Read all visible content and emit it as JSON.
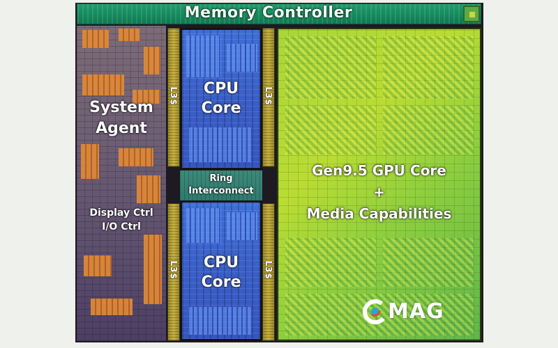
{
  "blocks": {
    "memory_controller": "Memory Controller",
    "system_agent": [
      "System",
      "Agent"
    ],
    "display_io": [
      "Display Ctrl",
      "I/O Ctrl"
    ],
    "l3_cache": "L3$",
    "cpu_core": [
      "CPU",
      "Core"
    ],
    "ring_interconnect": [
      "Ring",
      "Interconnect"
    ],
    "gpu": [
      "Gen9.5 GPU Core",
      "+",
      "Media Capabilities"
    ]
  },
  "watermark": {
    "text": "MAG",
    "color": "#ffffff"
  },
  "colors": {
    "memory_controller": "#14875d",
    "system_agent": "#6e5f74",
    "l3_cache": "#c9b23f",
    "cpu_core": "#3a5fc8",
    "ring": "#2f7a6e",
    "gpu": "#a9d63a"
  }
}
